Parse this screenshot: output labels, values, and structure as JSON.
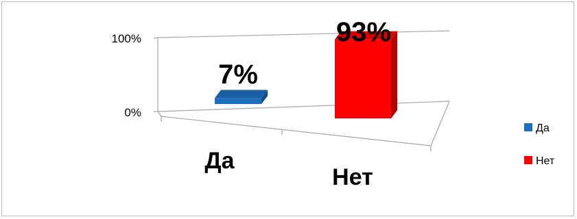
{
  "chart_data": {
    "type": "bar",
    "categories": [
      "Да",
      "Нет"
    ],
    "values": [
      7,
      93
    ],
    "data_labels": [
      "7%",
      "93%"
    ],
    "y_ticks": [
      "0%",
      "100%"
    ],
    "ylim": [
      0,
      100
    ],
    "colors": [
      "#1f6fc0",
      "#ff0000"
    ],
    "legend": {
      "position": "right",
      "entries": [
        "Да",
        "Нет"
      ]
    },
    "grid": true,
    "style": "3d-perspective"
  }
}
